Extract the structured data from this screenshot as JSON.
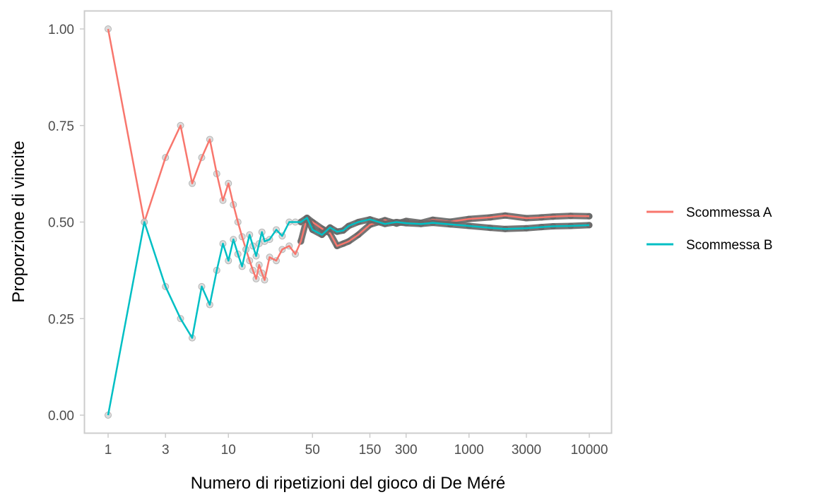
{
  "chart_data": {
    "type": "line",
    "title": "",
    "xlabel": "Numero di ripetizioni del gioco di De Méré",
    "ylabel": "Proporzione di vincite",
    "x_scale": "log10",
    "xlim": [
      1,
      10000
    ],
    "ylim": [
      0,
      1
    ],
    "x_ticks": [
      1,
      3,
      10,
      50,
      150,
      300,
      1000,
      3000,
      10000
    ],
    "x_tick_labels": [
      "1",
      "3",
      "10",
      "50",
      "150",
      "300",
      "1000",
      "3000",
      "10000"
    ],
    "y_ticks": [
      0,
      0.25,
      0.5,
      0.75,
      1.0
    ],
    "y_tick_labels": [
      "0.00",
      "0.25",
      "0.50",
      "0.75",
      "1.00"
    ],
    "grid": false,
    "legend_position": "right",
    "series": [
      {
        "name": "Scommessa A",
        "color": "#F8766D",
        "x": [
          1,
          2,
          3,
          4,
          5,
          6,
          7,
          8,
          9,
          10,
          11,
          12,
          13,
          14,
          15,
          16,
          17,
          18,
          19,
          20,
          22,
          25,
          28,
          32,
          36,
          40,
          45,
          50,
          60,
          70,
          80,
          90,
          100,
          120,
          150,
          200,
          250,
          300,
          400,
          500,
          700,
          1000,
          1500,
          2000,
          3000,
          4000,
          5000,
          7000,
          10000
        ],
        "y": [
          1.0,
          0.5,
          0.667,
          0.75,
          0.6,
          0.667,
          0.714,
          0.625,
          0.556,
          0.6,
          0.545,
          0.5,
          0.462,
          0.429,
          0.4,
          0.375,
          0.353,
          0.389,
          0.368,
          0.35,
          0.409,
          0.4,
          0.429,
          0.438,
          0.417,
          0.45,
          0.511,
          0.5,
          0.483,
          0.471,
          0.438,
          0.444,
          0.45,
          0.467,
          0.493,
          0.505,
          0.496,
          0.503,
          0.498,
          0.506,
          0.501,
          0.508,
          0.512,
          0.517,
          0.51,
          0.512,
          0.514,
          0.516,
          0.515
        ]
      },
      {
        "name": "Scommessa B",
        "color": "#00BFC4",
        "x": [
          1,
          2,
          3,
          4,
          5,
          6,
          7,
          8,
          9,
          10,
          11,
          12,
          13,
          14,
          15,
          16,
          17,
          18,
          19,
          20,
          22,
          25,
          28,
          32,
          36,
          40,
          45,
          50,
          60,
          70,
          80,
          90,
          100,
          120,
          150,
          200,
          250,
          300,
          400,
          500,
          700,
          1000,
          1500,
          2000,
          3000,
          4000,
          5000,
          7000,
          10000
        ],
        "y": [
          0.0,
          0.5,
          0.333,
          0.25,
          0.2,
          0.333,
          0.286,
          0.375,
          0.444,
          0.4,
          0.455,
          0.417,
          0.385,
          0.429,
          0.467,
          0.438,
          0.412,
          0.444,
          0.474,
          0.45,
          0.455,
          0.48,
          0.464,
          0.5,
          0.5,
          0.5,
          0.511,
          0.48,
          0.467,
          0.486,
          0.475,
          0.478,
          0.49,
          0.5,
          0.507,
          0.495,
          0.5,
          0.497,
          0.495,
          0.498,
          0.494,
          0.49,
          0.485,
          0.482,
          0.484,
          0.487,
          0.489,
          0.49,
          0.492
        ]
      }
    ]
  }
}
